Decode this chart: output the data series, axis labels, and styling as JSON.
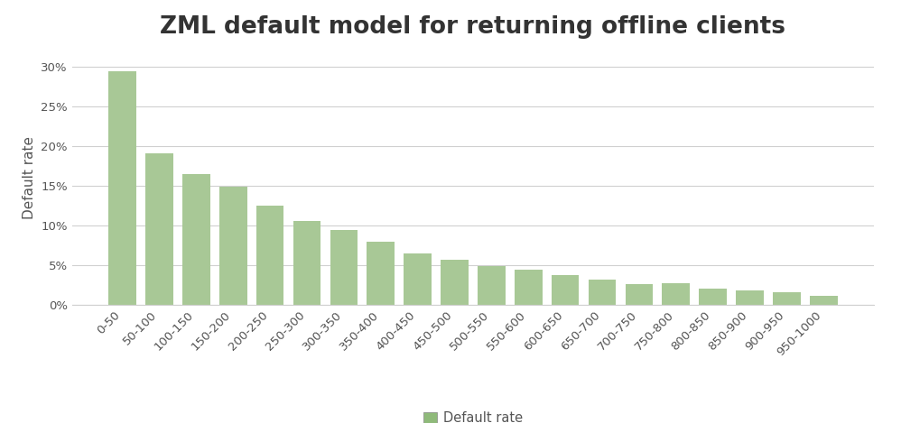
{
  "title": "ZML default model for returning offline clients",
  "categories": [
    "0-50",
    "50-100",
    "100-150",
    "150-200",
    "200-250",
    "250-300",
    "300-350",
    "350-400",
    "400-450",
    "450-500",
    "500-550",
    "550-600",
    "600-650",
    "650-700",
    "700-750",
    "750-800",
    "800-850",
    "850-900",
    "900-950",
    "950-1000"
  ],
  "values": [
    0.294,
    0.191,
    0.165,
    0.149,
    0.125,
    0.105,
    0.094,
    0.079,
    0.065,
    0.057,
    0.048,
    0.044,
    0.037,
    0.032,
    0.026,
    0.027,
    0.02,
    0.018,
    0.015,
    0.011
  ],
  "bar_color": "#a8c896",
  "bar_edge_color": "#a8c896",
  "ylabel": "Default rate",
  "ylim": [
    0,
    0.32
  ],
  "yticks": [
    0.0,
    0.05,
    0.1,
    0.15,
    0.2,
    0.25,
    0.3
  ],
  "legend_label": "Default rate",
  "legend_color": "#8fba7a",
  "background_color": "#ffffff",
  "grid_color": "#d0d0d0",
  "title_fontsize": 19,
  "ylabel_fontsize": 11,
  "tick_fontsize": 9.5,
  "legend_fontsize": 10.5
}
